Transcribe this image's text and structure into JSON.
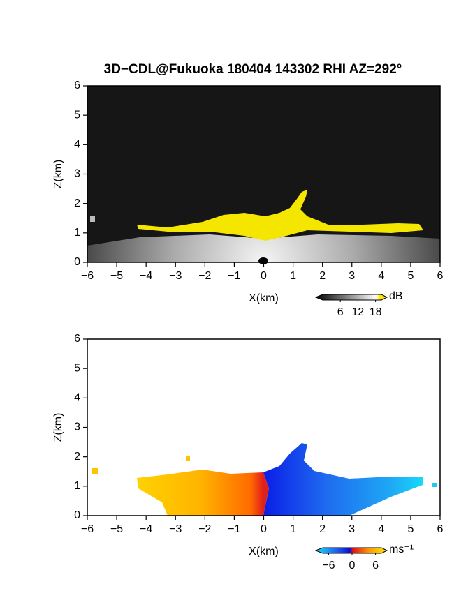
{
  "chart_data": [
    {
      "type": "heatmap",
      "title": "3D−CDL@Fukuoka 180404 143302 RHI AZ=292°",
      "xlabel": "X(km)",
      "ylabel": "Z(km)",
      "xlim": [
        -6,
        6
      ],
      "ylim": [
        0,
        6
      ],
      "xticks": [
        {
          "value": -6,
          "label": "−6"
        },
        {
          "value": -5,
          "label": "−5"
        },
        {
          "value": -4,
          "label": "−4"
        },
        {
          "value": -3,
          "label": "−3"
        },
        {
          "value": -2,
          "label": "−2"
        },
        {
          "value": -1,
          "label": "−1"
        },
        0,
        1,
        2,
        3,
        4,
        5,
        6
      ],
      "yticks": [
        0,
        1,
        2,
        3,
        4,
        5,
        6
      ],
      "colorbar": {
        "unit": "dB",
        "clim": [
          0,
          20
        ],
        "ticks": [
          6,
          12,
          18
        ]
      }
    },
    {
      "type": "heatmap",
      "xlabel": "X(km)",
      "ylabel": "Z(km)",
      "xlim": [
        -6,
        6
      ],
      "ylim": [
        0,
        6
      ],
      "xticks": [
        {
          "value": -6,
          "label": "−6"
        },
        {
          "value": -5,
          "label": "−5"
        },
        {
          "value": -4,
          "label": "−4"
        },
        {
          "value": -3,
          "label": "−3"
        },
        {
          "value": -2,
          "label": "−2"
        },
        {
          "value": -1,
          "label": "−1"
        },
        0,
        1,
        2,
        3,
        4,
        5,
        6
      ],
      "yticks": [
        0,
        1,
        2,
        3,
        4,
        5,
        6
      ],
      "colorbar": {
        "unit": "ms⁻¹",
        "clim": [
          -7.5,
          7.5
        ],
        "ticks": [
          {
            "value": -6,
            "label": "−6"
          },
          0,
          6
        ]
      }
    }
  ]
}
